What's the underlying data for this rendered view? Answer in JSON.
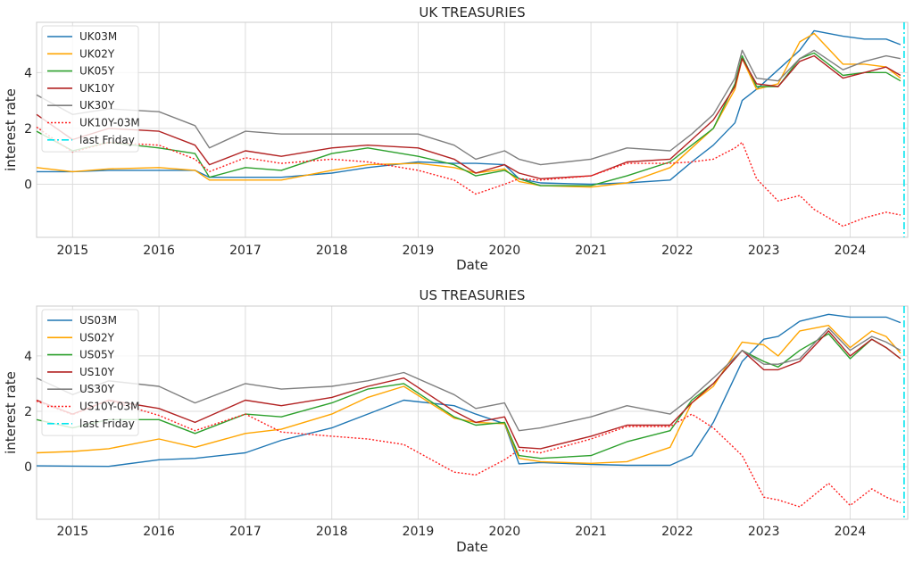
{
  "chart_data": [
    {
      "type": "line",
      "title": "UK TREASURIES",
      "xlabel": "Date",
      "ylabel": "interest rate",
      "x_ticks": [
        "2015",
        "2016",
        "2017",
        "2018",
        "2019",
        "2020",
        "2021",
        "2022",
        "2023",
        "2024"
      ],
      "y_ticks": [
        "0",
        "2",
        "4"
      ],
      "xlim": [
        "2014-08",
        "2024-09"
      ],
      "ylim": [
        -1.9,
        5.8
      ],
      "grid": true,
      "legend": "upper-left",
      "vline": {
        "name": "last Friday",
        "x": "2024-08-16",
        "color": "#00e5ee"
      },
      "x": [
        "2014-08",
        "2015-01",
        "2015-06",
        "2016-01",
        "2016-06",
        "2016-08",
        "2017-01",
        "2017-06",
        "2018-01",
        "2018-06",
        "2019-01",
        "2019-06",
        "2019-09",
        "2020-01",
        "2020-03",
        "2020-06",
        "2021-01",
        "2021-06",
        "2021-12",
        "2022-03",
        "2022-06",
        "2022-09",
        "2022-10",
        "2022-12",
        "2023-03",
        "2023-06",
        "2023-08",
        "2023-12",
        "2024-03",
        "2024-06",
        "2024-08"
      ],
      "series": [
        {
          "name": "UK03M",
          "color": "#1f77b4",
          "style": "solid",
          "values": [
            0.45,
            0.45,
            0.5,
            0.5,
            0.5,
            0.25,
            0.25,
            0.25,
            0.4,
            0.6,
            0.8,
            0.75,
            0.75,
            0.7,
            0.2,
            0.05,
            0.0,
            0.05,
            0.15,
            0.8,
            1.4,
            2.2,
            3.0,
            3.4,
            4.1,
            4.8,
            5.5,
            5.3,
            5.2,
            5.2,
            5.0
          ]
        },
        {
          "name": "UK02Y",
          "color": "#ffa500",
          "style": "solid",
          "values": [
            0.6,
            0.45,
            0.55,
            0.6,
            0.5,
            0.15,
            0.15,
            0.15,
            0.5,
            0.7,
            0.75,
            0.6,
            0.4,
            0.55,
            0.1,
            -0.05,
            -0.1,
            0.05,
            0.6,
            1.3,
            2.0,
            3.4,
            4.5,
            3.4,
            3.6,
            5.1,
            5.4,
            4.3,
            4.3,
            4.2,
            3.8
          ]
        },
        {
          "name": "UK05Y",
          "color": "#2ca02c",
          "style": "solid",
          "values": [
            1.9,
            1.2,
            1.5,
            1.3,
            1.1,
            0.25,
            0.6,
            0.5,
            1.1,
            1.3,
            1.0,
            0.7,
            0.3,
            0.5,
            0.2,
            -0.05,
            -0.05,
            0.3,
            0.8,
            1.4,
            2.0,
            3.6,
            4.6,
            3.5,
            3.5,
            4.5,
            4.7,
            3.9,
            4.0,
            4.0,
            3.7
          ]
        },
        {
          "name": "UK10Y",
          "color": "#b22222",
          "style": "solid",
          "values": [
            2.5,
            1.6,
            2.0,
            1.9,
            1.4,
            0.7,
            1.2,
            1.0,
            1.3,
            1.4,
            1.3,
            0.9,
            0.4,
            0.7,
            0.4,
            0.2,
            0.3,
            0.8,
            0.9,
            1.6,
            2.3,
            3.5,
            4.5,
            3.6,
            3.5,
            4.4,
            4.6,
            3.8,
            4.0,
            4.2,
            3.9
          ]
        },
        {
          "name": "UK30Y",
          "color": "#7f7f7f",
          "style": "solid",
          "values": [
            3.2,
            2.5,
            2.7,
            2.6,
            2.1,
            1.3,
            1.9,
            1.8,
            1.8,
            1.8,
            1.8,
            1.4,
            0.9,
            1.2,
            0.9,
            0.7,
            0.9,
            1.3,
            1.2,
            1.8,
            2.5,
            3.8,
            4.8,
            3.8,
            3.7,
            4.5,
            4.8,
            4.1,
            4.4,
            4.6,
            4.5
          ]
        },
        {
          "name": "UK10Y-03M",
          "color": "#ff2020",
          "style": "dotted",
          "values": [
            2.05,
            1.15,
            1.5,
            1.4,
            0.9,
            0.45,
            0.95,
            0.75,
            0.9,
            0.8,
            0.5,
            0.15,
            -0.35,
            0.0,
            0.2,
            0.15,
            0.3,
            0.75,
            0.75,
            0.8,
            0.9,
            1.3,
            1.5,
            0.2,
            -0.6,
            -0.4,
            -0.9,
            -1.5,
            -1.2,
            -1.0,
            -1.1
          ]
        }
      ]
    },
    {
      "type": "line",
      "title": "US TREASURIES",
      "xlabel": "Date",
      "ylabel": "interest rate",
      "x_ticks": [
        "2015",
        "2016",
        "2017",
        "2018",
        "2019",
        "2020",
        "2021",
        "2022",
        "2023",
        "2024"
      ],
      "y_ticks": [
        "0",
        "2",
        "4"
      ],
      "xlim": [
        "2014-08",
        "2024-09"
      ],
      "ylim": [
        -1.9,
        5.8
      ],
      "grid": true,
      "legend": "upper-left",
      "vline": {
        "name": "last Friday",
        "x": "2024-08-16",
        "color": "#00e5ee"
      },
      "x": [
        "2014-08",
        "2015-01",
        "2015-06",
        "2016-01",
        "2016-06",
        "2017-01",
        "2017-06",
        "2018-01",
        "2018-06",
        "2018-11",
        "2019-06",
        "2019-09",
        "2020-01",
        "2020-03",
        "2020-06",
        "2021-01",
        "2021-06",
        "2021-12",
        "2022-03",
        "2022-06",
        "2022-10",
        "2023-01",
        "2023-03",
        "2023-06",
        "2023-10",
        "2024-01",
        "2024-04",
        "2024-06",
        "2024-08"
      ],
      "series": [
        {
          "name": "US03M",
          "color": "#1f77b4",
          "style": "solid",
          "values": [
            0.03,
            0.02,
            0.01,
            0.25,
            0.3,
            0.5,
            0.95,
            1.4,
            1.9,
            2.4,
            2.2,
            1.9,
            1.55,
            0.1,
            0.15,
            0.08,
            0.05,
            0.05,
            0.4,
            1.6,
            3.8,
            4.6,
            4.7,
            5.25,
            5.5,
            5.4,
            5.4,
            5.4,
            5.2
          ]
        },
        {
          "name": "US02Y",
          "color": "#ffa500",
          "style": "solid",
          "values": [
            0.5,
            0.55,
            0.65,
            1.0,
            0.7,
            1.2,
            1.35,
            1.9,
            2.5,
            2.9,
            1.75,
            1.6,
            1.55,
            0.3,
            0.18,
            0.12,
            0.18,
            0.7,
            2.3,
            2.9,
            4.5,
            4.4,
            4.0,
            4.9,
            5.1,
            4.3,
            4.9,
            4.7,
            4.1
          ]
        },
        {
          "name": "US05Y",
          "color": "#2ca02c",
          "style": "solid",
          "values": [
            1.7,
            1.4,
            1.7,
            1.7,
            1.2,
            1.9,
            1.8,
            2.3,
            2.8,
            3.0,
            1.8,
            1.5,
            1.6,
            0.4,
            0.3,
            0.4,
            0.9,
            1.3,
            2.4,
            3.0,
            4.2,
            3.8,
            3.6,
            4.2,
            4.8,
            3.9,
            4.6,
            4.3,
            3.9
          ]
        },
        {
          "name": "US10Y",
          "color": "#b22222",
          "style": "solid",
          "values": [
            2.4,
            1.9,
            2.4,
            2.1,
            1.6,
            2.4,
            2.2,
            2.5,
            2.9,
            3.2,
            2.0,
            1.6,
            1.8,
            0.7,
            0.65,
            1.1,
            1.5,
            1.5,
            2.3,
            3.0,
            4.2,
            3.5,
            3.5,
            3.8,
            4.9,
            4.0,
            4.6,
            4.3,
            3.9
          ]
        },
        {
          "name": "US30Y",
          "color": "#7f7f7f",
          "style": "solid",
          "values": [
            3.2,
            2.6,
            3.1,
            2.9,
            2.3,
            3.0,
            2.8,
            2.9,
            3.1,
            3.4,
            2.6,
            2.1,
            2.3,
            1.3,
            1.4,
            1.8,
            2.2,
            1.9,
            2.5,
            3.2,
            4.2,
            3.7,
            3.7,
            3.9,
            5.0,
            4.2,
            4.7,
            4.5,
            4.2
          ]
        },
        {
          "name": "US10Y-03M",
          "color": "#ff2020",
          "style": "dotted",
          "values": [
            2.37,
            1.88,
            2.39,
            1.85,
            1.3,
            1.9,
            1.25,
            1.1,
            1.0,
            0.8,
            -0.2,
            -0.3,
            0.25,
            0.6,
            0.5,
            1.0,
            1.45,
            1.45,
            1.9,
            1.4,
            0.4,
            -1.1,
            -1.2,
            -1.45,
            -0.6,
            -1.4,
            -0.8,
            -1.1,
            -1.3
          ]
        }
      ]
    }
  ]
}
